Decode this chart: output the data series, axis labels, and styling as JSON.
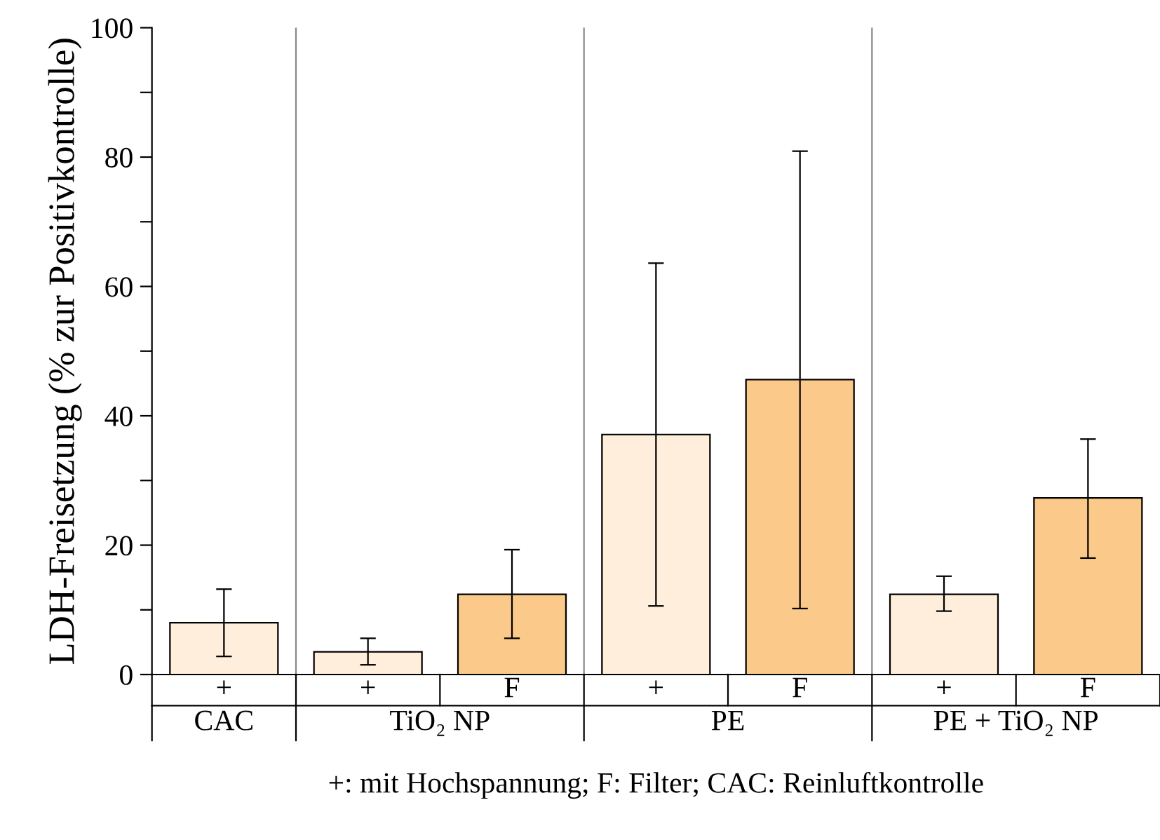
{
  "chart_data": {
    "type": "bar",
    "ylabel": "LDH-Freisetzung (% zur Positivkontrolle)",
    "xlabel": "+: mit Hochspannung; F: Filter; CAC: Reinluftkontrolle",
    "categories": [
      "+",
      "+",
      "F",
      "+",
      "F",
      "+",
      "F"
    ],
    "values": [
      8.0,
      3.5,
      12.4,
      37.1,
      45.6,
      12.4,
      27.3
    ],
    "errors": [
      [
        2.8,
        13.2
      ],
      [
        1.5,
        5.6
      ],
      [
        5.6,
        19.3
      ],
      [
        10.6,
        63.6
      ],
      [
        10.2,
        80.9
      ],
      [
        9.8,
        15.2
      ],
      [
        18.0,
        36.4
      ]
    ],
    "colors": [
      "#feeedb",
      "#feeedb",
      "#fbca8a",
      "#feeedb",
      "#fbca8a",
      "#feeedb",
      "#fbca8a"
    ],
    "annotations": [
      "CAC",
      "TiO₂ NP",
      "PE",
      "PE + TiO₂ NP"
    ],
    "ylim": [
      0,
      100
    ],
    "yticks": [
      0,
      {
        "value": 10,
        "label": null
      },
      20,
      {
        "value": 30,
        "label": null
      },
      40,
      {
        "value": 50,
        "label": null
      },
      60,
      {
        "value": 70,
        "label": null
      },
      80,
      {
        "value": 90,
        "label": null
      },
      100
    ],
    "grid": false,
    "legend": false
  }
}
